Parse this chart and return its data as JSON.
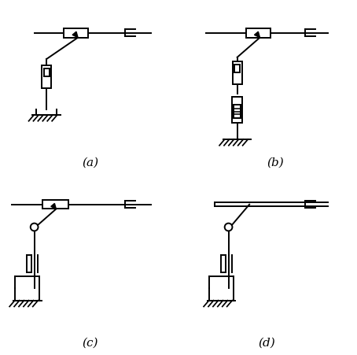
{
  "fig_width": 4.54,
  "fig_height": 4.52,
  "dpi": 100,
  "bg_color": "#ffffff",
  "line_color": "#000000",
  "labels": [
    "(a)",
    "(b)",
    "(c)",
    "(d)"
  ],
  "label_fontsize": 11
}
